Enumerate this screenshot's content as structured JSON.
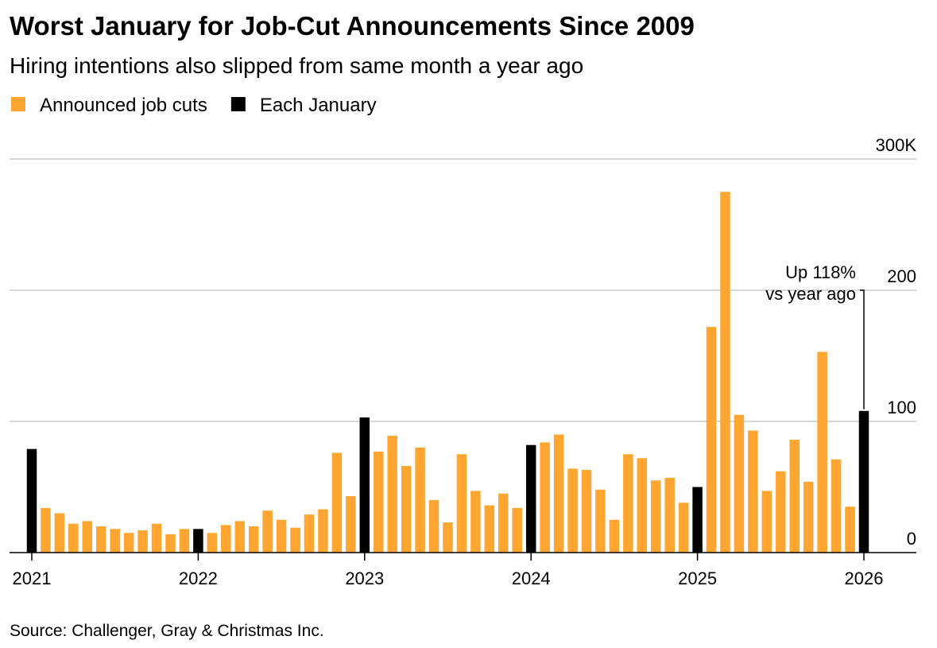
{
  "chart_data": {
    "type": "bar",
    "title": "Worst January for Job-Cut Announcements Since 2009",
    "subtitle": "Hiring intentions also slipped from same month a year ago",
    "categories": [
      "2021",
      null,
      null,
      null,
      null,
      null,
      null,
      null,
      null,
      null,
      null,
      null,
      "2022",
      null,
      null,
      null,
      null,
      null,
      null,
      null,
      null,
      null,
      null,
      null,
      "2023",
      null,
      null,
      null,
      null,
      null,
      null,
      null,
      null,
      null,
      null,
      null,
      "2024",
      null,
      null,
      null,
      null,
      null,
      null,
      null,
      null,
      null,
      null,
      null,
      "2025",
      null,
      null,
      null,
      null,
      null,
      null,
      null,
      null,
      null,
      null,
      null,
      "2026"
    ],
    "series": [
      {
        "name": "Announced job cuts",
        "color": "#ffa532",
        "values": [
          null,
          34,
          30,
          22,
          24,
          20,
          18,
          15,
          17,
          22,
          14,
          18,
          null,
          15,
          21,
          24,
          20,
          32,
          25,
          19,
          29,
          33,
          76,
          43,
          null,
          77,
          89,
          66,
          80,
          40,
          23,
          75,
          47,
          36,
          45,
          34,
          null,
          84,
          90,
          64,
          63,
          48,
          25,
          75,
          72,
          55,
          57,
          38,
          null,
          172,
          275,
          105,
          93,
          47,
          62,
          86,
          54,
          153,
          71,
          35,
          null
        ]
      },
      {
        "name": "Each January",
        "color": "#000000",
        "values": [
          79,
          null,
          null,
          null,
          null,
          null,
          null,
          null,
          null,
          null,
          null,
          null,
          18,
          null,
          null,
          null,
          null,
          null,
          null,
          null,
          null,
          null,
          null,
          null,
          103,
          null,
          null,
          null,
          null,
          null,
          null,
          null,
          null,
          null,
          null,
          null,
          82,
          null,
          null,
          null,
          null,
          null,
          null,
          null,
          null,
          null,
          null,
          null,
          50,
          null,
          null,
          null,
          null,
          null,
          null,
          null,
          null,
          null,
          null,
          null,
          108
        ]
      }
    ],
    "ylim": [
      0,
      300
    ],
    "yticks": [
      0,
      100,
      200,
      {
        "value": 300,
        "label": "300K"
      }
    ],
    "grid": true,
    "annotation": [
      "Up 118%",
      "vs year ago"
    ],
    "source": "Source: Challenger, Gray & Christmas Inc."
  }
}
